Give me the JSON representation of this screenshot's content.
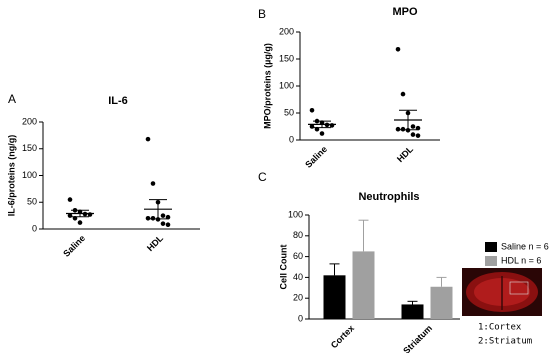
{
  "chart_data": [
    {
      "type": "dotplot",
      "panel": "A",
      "title": "IL-6",
      "y_label": "IL-6/proteins (ng/g)",
      "categories": [
        "Saline",
        "HDL"
      ],
      "values": [
        [
          55,
          35,
          32,
          28,
          27,
          25,
          20,
          12
        ],
        [
          168,
          85,
          50,
          25,
          22,
          20,
          20,
          18,
          10,
          8
        ]
      ],
      "mean": [
        29,
        37
      ],
      "sem": [
        6,
        18
      ],
      "color": "#000000",
      "ylim": [
        0,
        200
      ],
      "yticks": [
        0,
        50,
        100,
        150,
        200
      ]
    },
    {
      "type": "dotplot",
      "panel": "B",
      "title": "MPO",
      "y_label": "MPO/proteins (µg/g)",
      "categories": [
        "Saline",
        "HDL"
      ],
      "values": [
        [
          55,
          35,
          32,
          28,
          27,
          25,
          20,
          12
        ],
        [
          168,
          85,
          50,
          25,
          22,
          20,
          20,
          18,
          10,
          8
        ]
      ],
      "mean": [
        29,
        37
      ],
      "sem": [
        6,
        18
      ],
      "color": "#000000",
      "ylim": [
        0,
        200
      ],
      "yticks": [
        0,
        50,
        100,
        150,
        200
      ]
    },
    {
      "type": "bar",
      "panel": "C",
      "title": "Neutrophils",
      "y_label": "Cell Count",
      "categories": [
        "Cortex",
        "Striatum"
      ],
      "series": [
        {
          "name": "Saline n = 6",
          "color": "#000000",
          "values": [
            42,
            14
          ],
          "errors": [
            11,
            3
          ]
        },
        {
          "name": "HDL n = 6",
          "color": "#a0a0a0",
          "values": [
            65,
            31
          ],
          "errors": [
            30,
            9
          ]
        }
      ],
      "ylim": [
        0,
        100
      ],
      "yticks": [
        0,
        20,
        40,
        60,
        80,
        100
      ],
      "annotations": [
        "1:Cortex",
        "2:Striatum"
      ]
    }
  ]
}
